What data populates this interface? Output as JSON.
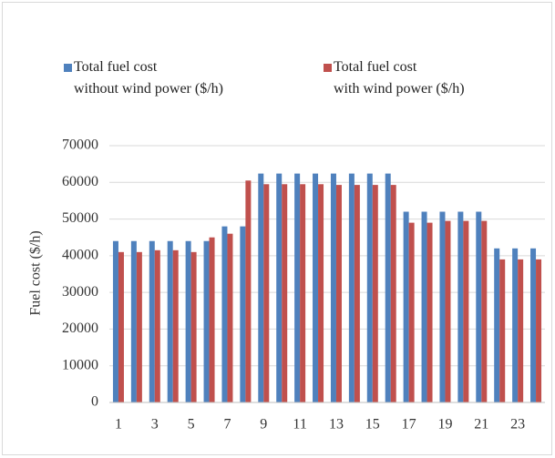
{
  "chart_data": {
    "type": "bar",
    "categories": [
      "1",
      null,
      "3",
      null,
      "5",
      null,
      "7",
      null,
      "9",
      null,
      "11",
      null,
      "13",
      null,
      "15",
      null,
      "17",
      null,
      "19",
      null,
      "21",
      null,
      "23",
      null
    ],
    "series": [
      {
        "name": "Total fuel cost\nwithout wind power  ($/h)",
        "color": "#4f81bd",
        "values": [
          44000,
          44000,
          44000,
          44000,
          44000,
          44000,
          48000,
          48000,
          62400,
          62400,
          62400,
          62400,
          62400,
          62400,
          62400,
          62400,
          52000,
          52000,
          52000,
          52000,
          52000,
          42000,
          42000,
          42000
        ]
      },
      {
        "name": "Total fuel cost\nwith wind power  ($/h)",
        "color": "#c0504d",
        "values": [
          41000,
          41000,
          41500,
          41500,
          41000,
          45000,
          46000,
          60500,
          59500,
          59500,
          59500,
          59500,
          59300,
          59300,
          59300,
          59300,
          49000,
          49000,
          49500,
          49500,
          49500,
          39000,
          39000,
          39000
        ]
      }
    ],
    "y_label": "Fuel cost ($/h)",
    "ylim": [
      0,
      70000
    ],
    "yticks": [
      0,
      10000,
      20000,
      30000,
      40000,
      50000,
      60000,
      70000
    ],
    "grid": true
  }
}
